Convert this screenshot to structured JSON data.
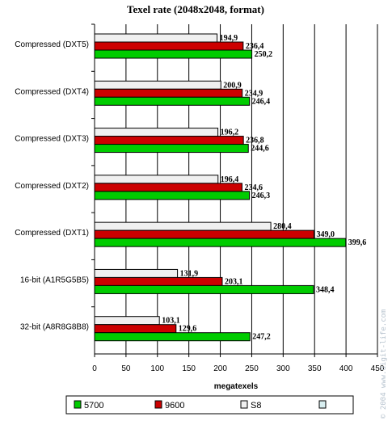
{
  "chart_data": {
    "type": "bar",
    "orientation": "horizontal",
    "title": "Texel rate (2048x2048, format)",
    "xlabel": "megatexels",
    "ylabel": "",
    "xlim": [
      0,
      450
    ],
    "xticks": [
      "0",
      "50",
      "100",
      "150",
      "200",
      "250",
      "300",
      "350",
      "400",
      "450"
    ],
    "grid": true,
    "legend_position": "bottom",
    "categories": [
      "Compressed (DXT5)",
      "Compressed (DXT4)",
      "Compressed (DXT3)",
      "Compressed (DXT2)",
      "Compressed (DXT1)",
      "16-bit (A1R5G5B5)",
      "32-bit (A8R8G8B8)"
    ],
    "series": [
      {
        "name": "S8",
        "color": "#f0f0f0",
        "values": [
          194.9,
          200.9,
          196.2,
          196.4,
          280.4,
          131.9,
          103.1
        ],
        "labels": [
          "194,9",
          "200,9",
          "196,2",
          "196,4",
          "280,4",
          "131,9",
          "103,1"
        ]
      },
      {
        "name": "9600",
        "color": "#cc0000",
        "values": [
          236.4,
          234.9,
          236.8,
          234.6,
          349.0,
          203.1,
          129.6
        ],
        "labels": [
          "236,4",
          "234,9",
          "236,8",
          "234,6",
          "349,0",
          "203,1",
          "129,6"
        ]
      },
      {
        "name": "5700",
        "color": "#00cc00",
        "values": [
          250.2,
          246.4,
          244.6,
          246.3,
          399.6,
          348.4,
          247.2
        ],
        "labels": [
          "250,2",
          "246,4",
          "244,6",
          "246,3",
          "399,6",
          "348,4",
          "247,2"
        ]
      }
    ],
    "legend": [
      {
        "name": "5700",
        "color": "#00cc00"
      },
      {
        "name": "9600",
        "color": "#cc0000"
      },
      {
        "name": "S8",
        "color": "#f0f0f0"
      },
      {
        "name": "",
        "color": "#d8eef0"
      }
    ]
  },
  "watermark": "© 2004 www.digit-life.com"
}
